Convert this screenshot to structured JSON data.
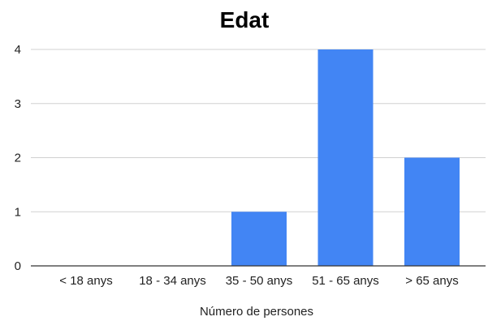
{
  "chart_data": {
    "type": "bar",
    "title": "Edat",
    "xlabel": "Número de persones",
    "ylabel": "",
    "categories": [
      "< 18 anys",
      "18 - 34 anys",
      "35 - 50 anys",
      "51 - 65 anys",
      "> 65 anys"
    ],
    "values": [
      0,
      0,
      1,
      4,
      2
    ],
    "ylim": [
      0,
      4
    ],
    "yticks": [
      "0",
      "1",
      "2",
      "3",
      "4"
    ],
    "grid": true,
    "legend": "none",
    "bar_color": "#4285f4"
  }
}
